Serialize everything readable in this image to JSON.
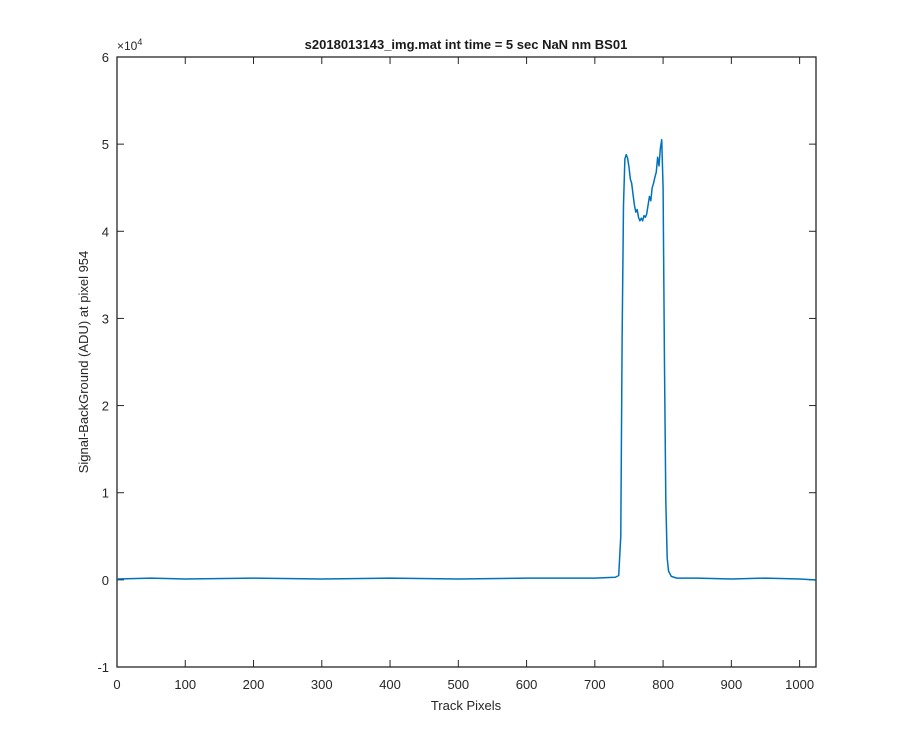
{
  "chart_data": {
    "type": "line",
    "title": "s2018013143_img.mat int time = 5 sec  NaN nm BS01",
    "xlabel": "Track Pixels",
    "ylabel": "Signal-BackGround (ADU) at pixel 954",
    "y_exponent_label": {
      "base": "×10",
      "power": "4"
    },
    "xlim": [
      0,
      1024
    ],
    "ylim": [
      -1,
      6
    ],
    "y_units_scale": 10000,
    "grid": false,
    "legend": "none",
    "color": "#0072BD",
    "x_ticks": [
      0,
      100,
      200,
      300,
      400,
      500,
      600,
      700,
      800,
      900,
      1000
    ],
    "x_tick_labels": [
      "0",
      "100",
      "200",
      "300",
      "400",
      "500",
      "600",
      "700",
      "800",
      "900",
      "1000"
    ],
    "y_ticks": [
      -1,
      0,
      1,
      2,
      3,
      4,
      5,
      6
    ],
    "y_tick_labels": [
      "-1",
      "0",
      "1",
      "2",
      "3",
      "4",
      "5",
      "6"
    ],
    "series": [
      {
        "x": [
          0,
          50,
          100,
          200,
          300,
          400,
          500,
          600,
          700,
          730,
          735,
          738,
          740,
          742,
          744,
          746,
          748,
          750,
          752,
          754,
          756,
          758,
          760,
          762,
          764,
          766,
          768,
          770,
          772,
          774,
          776,
          778,
          780,
          782,
          784,
          786,
          788,
          790,
          792,
          794,
          796,
          798,
          800,
          802,
          804,
          806,
          808,
          812,
          820,
          850,
          900,
          950,
          1000,
          1022,
          1024
        ],
        "y": [
          0.01,
          0.02,
          0.01,
          0.02,
          0.01,
          0.02,
          0.01,
          0.02,
          0.02,
          0.03,
          0.05,
          0.5,
          2.8,
          4.3,
          4.83,
          4.88,
          4.84,
          4.74,
          4.6,
          4.55,
          4.42,
          4.3,
          4.22,
          4.25,
          4.16,
          4.12,
          4.15,
          4.12,
          4.18,
          4.16,
          4.2,
          4.3,
          4.4,
          4.35,
          4.5,
          4.55,
          4.62,
          4.68,
          4.85,
          4.75,
          4.95,
          5.05,
          4.5,
          2.5,
          0.9,
          0.25,
          0.1,
          0.04,
          0.02,
          0.02,
          0.01,
          0.02,
          0.01,
          0.0,
          -0.01
        ]
      }
    ]
  }
}
